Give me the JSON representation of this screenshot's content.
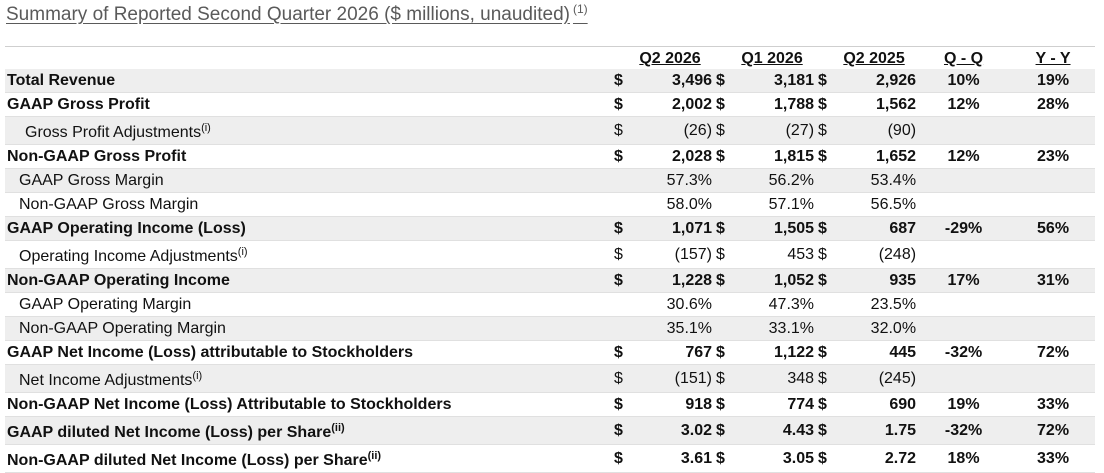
{
  "title": "Summary of Reported Second Quarter 2026 ($ millions, unaudited)",
  "title_footnote": "(1)",
  "columns": [
    "Q2 2026",
    "Q1 2026",
    "Q2 2025",
    "Q - Q",
    "Y - Y"
  ],
  "rows": [
    {
      "label": "Total Revenue",
      "sup": "",
      "bold": true,
      "indent": 0,
      "shaded": true,
      "c1": "$",
      "v1": "3,496",
      "c2": "$",
      "v2": "3,181",
      "c3": "$",
      "v3": "2,926",
      "qq": "10%",
      "yy": "19%"
    },
    {
      "label": "GAAP Gross Profit",
      "sup": "",
      "bold": true,
      "indent": 0,
      "shaded": false,
      "c1": "$",
      "v1": "2,002",
      "c2": "$",
      "v2": "1,788",
      "c3": "$",
      "v3": "1,562",
      "qq": "12%",
      "yy": "28%"
    },
    {
      "label": "Gross Profit Adjustments",
      "sup": "(i)",
      "bold": false,
      "indent": 18,
      "shaded": true,
      "c1": "$",
      "v1": "(26)",
      "c2": "$",
      "v2": "(27)",
      "c3": "$",
      "v3": "(90)",
      "qq": "",
      "yy": ""
    },
    {
      "label": "Non-GAAP Gross Profit",
      "sup": "",
      "bold": true,
      "indent": 0,
      "shaded": false,
      "c1": "$",
      "v1": "2,028",
      "c2": "$",
      "v2": "1,815",
      "c3": "$",
      "v3": "1,652",
      "qq": "12%",
      "yy": "23%"
    },
    {
      "label": "GAAP Gross Margin",
      "sup": "",
      "bold": false,
      "indent": 12,
      "shaded": true,
      "c1": "",
      "v1": "57.3%",
      "c2": "",
      "v2": "56.2%",
      "c3": "",
      "v3": "53.4%",
      "qq": "",
      "yy": ""
    },
    {
      "label": "Non-GAAP Gross Margin",
      "sup": "",
      "bold": false,
      "indent": 12,
      "shaded": false,
      "c1": "",
      "v1": "58.0%",
      "c2": "",
      "v2": "57.1%",
      "c3": "",
      "v3": "56.5%",
      "qq": "",
      "yy": ""
    },
    {
      "label": "GAAP Operating Income (Loss)",
      "sup": "",
      "bold": true,
      "indent": 0,
      "shaded": true,
      "c1": "$",
      "v1": "1,071",
      "c2": "$",
      "v2": "1,505",
      "c3": "$",
      "v3": "687",
      "qq": "-29%",
      "yy": "56%"
    },
    {
      "label": "Operating Income Adjustments",
      "sup": "(i)",
      "bold": false,
      "indent": 12,
      "shaded": false,
      "c1": "$",
      "v1": "(157)",
      "c2": "$",
      "v2": "453",
      "c3": "$",
      "v3": "(248)",
      "qq": "",
      "yy": ""
    },
    {
      "label": "Non-GAAP Operating Income",
      "sup": "",
      "bold": true,
      "indent": 0,
      "shaded": true,
      "c1": "$",
      "v1": "1,228",
      "c2": "$",
      "v2": "1,052",
      "c3": "$",
      "v3": "935",
      "qq": "17%",
      "yy": "31%"
    },
    {
      "label": "GAAP Operating Margin",
      "sup": "",
      "bold": false,
      "indent": 12,
      "shaded": false,
      "c1": "",
      "v1": "30.6%",
      "c2": "",
      "v2": "47.3%",
      "c3": "",
      "v3": "23.5%",
      "qq": "",
      "yy": ""
    },
    {
      "label": "Non-GAAP Operating Margin",
      "sup": "",
      "bold": false,
      "indent": 12,
      "shaded": true,
      "c1": "",
      "v1": "35.1%",
      "c2": "",
      "v2": "33.1%",
      "c3": "",
      "v3": "32.0%",
      "qq": "",
      "yy": ""
    },
    {
      "label": "GAAP Net Income (Loss) attributable to Stockholders",
      "sup": "",
      "bold": true,
      "indent": 0,
      "shaded": false,
      "c1": "$",
      "v1": "767",
      "c2": "$",
      "v2": "1,122",
      "c3": "$",
      "v3": "445",
      "qq": "-32%",
      "yy": "72%"
    },
    {
      "label": "Net Income Adjustments",
      "sup": "(i)",
      "bold": false,
      "indent": 12,
      "shaded": true,
      "c1": "$",
      "v1": "(151)",
      "c2": "$",
      "v2": "348",
      "c3": "$",
      "v3": "(245)",
      "qq": "",
      "yy": ""
    },
    {
      "label": "Non-GAAP Net Income (Loss) Attributable to Stockholders",
      "sup": "",
      "bold": true,
      "indent": 0,
      "shaded": false,
      "c1": "$",
      "v1": "918",
      "c2": "$",
      "v2": "774",
      "c3": "$",
      "v3": "690",
      "qq": "19%",
      "yy": "33%"
    },
    {
      "label": "GAAP diluted Net Income (Loss) per Share",
      "sup": "(ii)",
      "bold": true,
      "indent": 0,
      "shaded": true,
      "c1": "$",
      "v1": "3.02",
      "c2": "$",
      "v2": "4.43",
      "c3": "$",
      "v3": "1.75",
      "qq": "-32%",
      "yy": "72%"
    },
    {
      "label": "Non-GAAP diluted Net Income (Loss) per Share",
      "sup": "(ii)",
      "bold": true,
      "indent": 0,
      "shaded": false,
      "c1": "$",
      "v1": "3.61",
      "c2": "$",
      "v2": "3.05",
      "c3": "$",
      "v3": "2.72",
      "qq": "18%",
      "yy": "33%"
    }
  ]
}
